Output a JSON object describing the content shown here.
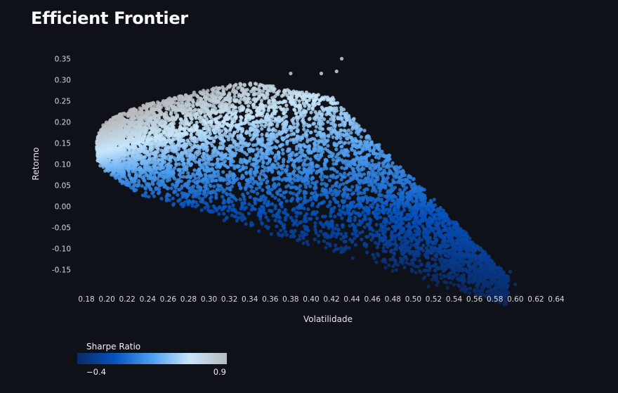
{
  "page": {
    "title": "Efficient Frontier"
  },
  "chart_data": {
    "type": "scatter",
    "title": "",
    "xlabel": "Volatilidade",
    "ylabel": "Retorno",
    "x_ticks": [
      "0.18",
      "0.20",
      "0.22",
      "0.24",
      "0.26",
      "0.28",
      "0.30",
      "0.32",
      "0.34",
      "0.36",
      "0.38",
      "0.40",
      "0.42",
      "0.44",
      "0.46",
      "0.48",
      "0.50",
      "0.52",
      "0.54",
      "0.56",
      "0.58",
      "0.60",
      "0.62",
      "0.64"
    ],
    "y_ticks": [
      "-0.15",
      "-0.10",
      "-0.05",
      "0.00",
      "0.05",
      "0.10",
      "0.15",
      "0.20",
      "0.25",
      "0.30",
      "0.35"
    ],
    "xlim": [
      0.172,
      0.652
    ],
    "ylim": [
      -0.195,
      0.37
    ],
    "grid": false,
    "colorbar": {
      "title": "Sharpe Ratio",
      "min": -0.4,
      "max": 0.9,
      "min_label": "−0.4",
      "max_label": "0.9",
      "colors": [
        "#0a2a66",
        "#0553c0",
        "#4e9ff0",
        "#c8e6fb",
        "#b8bbbe"
      ],
      "placement": "bottom-left"
    },
    "frontier_points": [
      {
        "x": 0.195,
        "y": 0.13
      },
      {
        "x": 0.2,
        "y": 0.165
      },
      {
        "x": 0.21,
        "y": 0.19
      },
      {
        "x": 0.23,
        "y": 0.215
      },
      {
        "x": 0.25,
        "y": 0.235
      },
      {
        "x": 0.28,
        "y": 0.26
      },
      {
        "x": 0.31,
        "y": 0.28
      },
      {
        "x": 0.34,
        "y": 0.29
      },
      {
        "x": 0.38,
        "y": 0.315
      },
      {
        "x": 0.41,
        "y": 0.315
      },
      {
        "x": 0.425,
        "y": 0.32
      },
      {
        "x": 0.43,
        "y": 0.35
      }
    ],
    "outlier_points": [
      {
        "x": 0.58,
        "y": -0.18
      },
      {
        "x": 0.595,
        "y": -0.155
      },
      {
        "x": 0.6,
        "y": -0.185
      },
      {
        "x": 0.57,
        "y": -0.14
      },
      {
        "x": 0.555,
        "y": -0.12
      },
      {
        "x": 0.53,
        "y": -0.165
      },
      {
        "x": 0.515,
        "y": -0.19
      },
      {
        "x": 0.545,
        "y": -0.175
      },
      {
        "x": 0.56,
        "y": -0.155
      },
      {
        "x": 0.535,
        "y": -0.105
      },
      {
        "x": 0.52,
        "y": -0.085
      },
      {
        "x": 0.505,
        "y": -0.06
      },
      {
        "x": 0.49,
        "y": -0.04
      },
      {
        "x": 0.47,
        "y": -0.01
      },
      {
        "x": 0.455,
        "y": 0.02
      }
    ],
    "bulk_points_count": 7000
  }
}
